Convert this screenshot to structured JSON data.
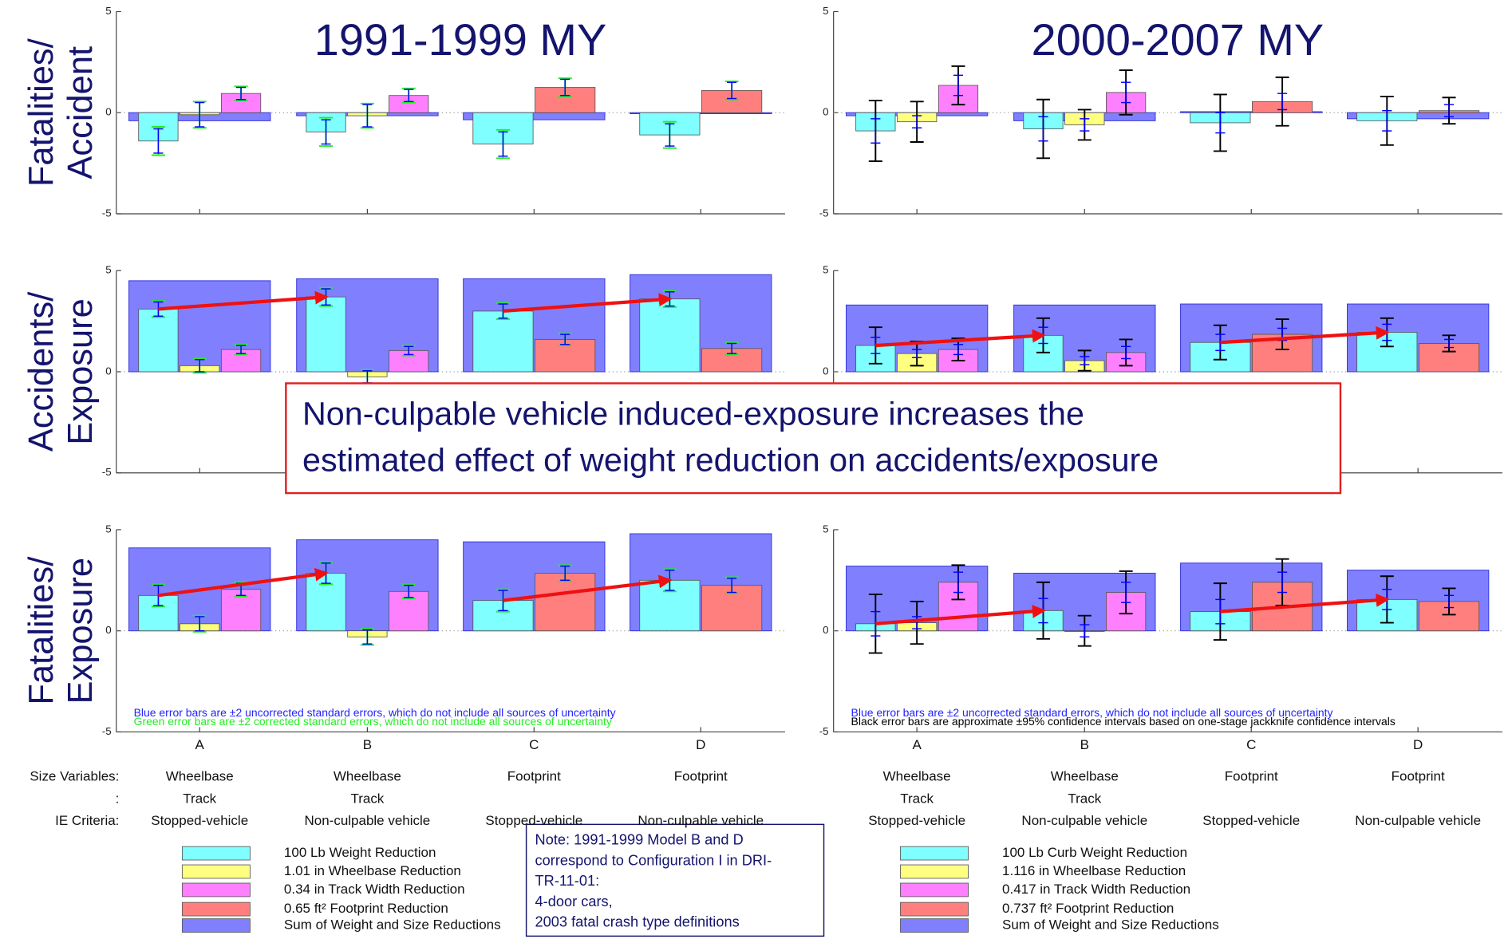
{
  "chart_data": [
    {
      "type": "bar",
      "title": "1991-1999 MY",
      "ylabel": [
        "Fatalities/",
        "Accident"
      ],
      "ylim": [
        -5,
        5
      ],
      "yticks": [
        5,
        0,
        -5
      ],
      "error_color": "#0000ff",
      "error2_color": "#22ee22",
      "series": [
        {
          "color": "#7fffff",
          "values": [
            -1.4,
            -0.95,
            -1.55,
            -1.1
          ],
          "errors": [
            0.6,
            0.6,
            0.6,
            0.55
          ],
          "errors2": [
            0.7,
            0.7,
            0.7,
            0.65
          ]
        },
        {
          "color": "#ffff80",
          "values": [
            -0.1,
            -0.15,
            null,
            null
          ],
          "errors": [
            0.6,
            0.55,
            null,
            null
          ],
          "errors2": [
            0.65,
            0.6,
            null,
            null
          ]
        },
        {
          "color": "#ff80ff",
          "values": [
            0.95,
            0.85,
            null,
            null
          ],
          "errors": [
            0.3,
            0.3,
            null,
            null
          ],
          "errors2": [
            0.35,
            0.35,
            null,
            null
          ]
        },
        {
          "color": "#ff7f7f",
          "values": [
            null,
            null,
            1.25,
            1.1
          ],
          "errors": [
            null,
            null,
            0.4,
            0.4
          ],
          "errors2": [
            null,
            null,
            0.45,
            0.45
          ]
        },
        {
          "color": "#8080ff",
          "background": true,
          "values": [
            -0.4,
            -0.15,
            -0.35,
            -0.05
          ]
        }
      ]
    },
    {
      "type": "bar",
      "ylabel": [
        "Accidents/",
        "Exposure"
      ],
      "arrows": true,
      "ylim": [
        -5,
        5
      ],
      "yticks": [
        5,
        0,
        -5
      ],
      "error_color": "#0000ff",
      "error2_color": "#22ee22",
      "series": [
        {
          "color": "#7fffff",
          "values": [
            3.1,
            3.7,
            3.0,
            3.6
          ],
          "errors": [
            0.35,
            0.4,
            0.35,
            0.35
          ],
          "errors2": [
            0.4,
            0.45,
            0.4,
            0.4
          ]
        },
        {
          "color": "#ffff80",
          "values": [
            0.3,
            -0.25,
            null,
            null
          ],
          "errors": [
            0.3,
            0.3,
            null,
            null
          ],
          "errors2": [
            0.35,
            0.35,
            null,
            null
          ]
        },
        {
          "color": "#ff80ff",
          "values": [
            1.1,
            1.05,
            null,
            null
          ],
          "errors": [
            0.2,
            0.2,
            null,
            null
          ],
          "errors2": [
            0.25,
            0.25,
            null,
            null
          ]
        },
        {
          "color": "#ff7f7f",
          "values": [
            null,
            null,
            1.6,
            1.15
          ],
          "errors": [
            null,
            null,
            0.25,
            0.25
          ],
          "errors2": [
            null,
            null,
            0.3,
            0.3
          ]
        },
        {
          "color": "#8080ff",
          "background": true,
          "values": [
            4.5,
            4.6,
            4.6,
            4.8
          ]
        }
      ]
    },
    {
      "type": "bar",
      "ylabel": [
        "Fatalities/",
        "Exposure"
      ],
      "arrows": true,
      "categories": [
        "A",
        "B",
        "C",
        "D"
      ],
      "ylim": [
        -5,
        5
      ],
      "yticks": [
        5,
        0,
        -5
      ],
      "error_color": "#0000ff",
      "error2_color": "#22ee22",
      "notes": [
        {
          "text": "Blue error bars are ±2 uncorrected standard errors, which do not include all sources of uncertainty",
          "color": "#2222ff"
        },
        {
          "text": "Green error bars are ±2 corrected standard errors, which do not include all sources of uncertainty",
          "color": "#22ee22"
        }
      ],
      "series": [
        {
          "name": "100 Lb Weight Reduction",
          "color": "#7fffff",
          "values": [
            1.75,
            2.85,
            1.5,
            2.5
          ],
          "errors": [
            0.5,
            0.5,
            0.5,
            0.5
          ],
          "errors2": [
            0.55,
            0.55,
            0.55,
            0.55
          ]
        },
        {
          "name": "1.01 in Wheelbase Reduction",
          "color": "#ffff80",
          "values": [
            0.35,
            -0.3,
            null,
            null
          ],
          "errors": [
            0.35,
            0.35,
            null,
            null
          ],
          "errors2": [
            0.4,
            0.4,
            null,
            null
          ]
        },
        {
          "name": "0.34 in Track Width Reduction",
          "color": "#ff80ff",
          "values": [
            2.05,
            1.95,
            null,
            null
          ],
          "errors": [
            0.3,
            0.3,
            null,
            null
          ],
          "errors2": [
            0.35,
            0.35,
            null,
            null
          ]
        },
        {
          "name": "0.65 ft² Footprint Reduction",
          "color": "#ff7f7f",
          "values": [
            null,
            null,
            2.85,
            2.25
          ],
          "errors": [
            null,
            null,
            0.35,
            0.35
          ],
          "errors2": [
            null,
            null,
            0.4,
            0.4
          ]
        },
        {
          "name": "Sum of Weight and Size Reductions",
          "color": "#8080ff",
          "background": true,
          "values": [
            4.1,
            4.5,
            4.4,
            4.8
          ]
        }
      ]
    },
    {
      "type": "bar",
      "title": "2000-2007 MY",
      "ylim": [
        -5,
        5
      ],
      "yticks": [
        5,
        0,
        -5
      ],
      "error_color": "#0000ff",
      "error2_color": "#000000",
      "series": [
        {
          "color": "#7fffff",
          "values": [
            -0.9,
            -0.8,
            -0.5,
            -0.4
          ],
          "errors": [
            0.6,
            0.6,
            0.5,
            0.5
          ],
          "errors2": [
            1.5,
            1.45,
            1.4,
            1.2
          ]
        },
        {
          "color": "#ffff80",
          "values": [
            -0.45,
            -0.6,
            null,
            null
          ],
          "errors": [
            0.3,
            0.3,
            null,
            null
          ],
          "errors2": [
            1.0,
            0.75,
            null,
            null
          ]
        },
        {
          "color": "#ff80ff",
          "values": [
            1.35,
            1.0,
            null,
            null
          ],
          "errors": [
            0.5,
            0.5,
            null,
            null
          ],
          "errors2": [
            0.95,
            1.1,
            null,
            null
          ]
        },
        {
          "color": "#ff7f7f",
          "values": [
            null,
            null,
            0.55,
            0.1
          ],
          "errors": [
            null,
            null,
            0.4,
            0.3
          ],
          "errors2": [
            null,
            null,
            1.2,
            0.65
          ]
        },
        {
          "color": "#8080ff",
          "background": true,
          "values": [
            -0.15,
            -0.4,
            0.05,
            -0.3
          ]
        }
      ]
    },
    {
      "type": "bar",
      "arrows": true,
      "ylim": [
        -5,
        5
      ],
      "yticks": [
        5,
        0,
        -5
      ],
      "error_color": "#0000ff",
      "error2_color": "#000000",
      "series": [
        {
          "color": "#7fffff",
          "values": [
            1.3,
            1.8,
            1.45,
            1.95
          ],
          "errors": [
            0.4,
            0.4,
            0.4,
            0.4
          ],
          "errors2": [
            0.9,
            0.85,
            0.85,
            0.7
          ]
        },
        {
          "color": "#ffff80",
          "values": [
            0.9,
            0.55,
            null,
            null
          ],
          "errors": [
            0.2,
            0.2,
            null,
            null
          ],
          "errors2": [
            0.6,
            0.5,
            null,
            null
          ]
        },
        {
          "color": "#ff80ff",
          "values": [
            1.1,
            0.95,
            null,
            null
          ],
          "errors": [
            0.25,
            0.3,
            null,
            null
          ],
          "errors2": [
            0.55,
            0.65,
            null,
            null
          ]
        },
        {
          "color": "#ff7f7f",
          "values": [
            null,
            null,
            1.85,
            1.4
          ],
          "errors": [
            null,
            null,
            0.3,
            0.2
          ],
          "errors2": [
            null,
            null,
            0.75,
            0.4
          ]
        },
        {
          "color": "#8080ff",
          "background": true,
          "values": [
            3.3,
            3.3,
            3.35,
            3.35
          ]
        }
      ]
    },
    {
      "type": "bar",
      "arrows": true,
      "categories": [
        "A",
        "B",
        "C",
        "D"
      ],
      "ylim": [
        -5,
        5
      ],
      "yticks": [
        5,
        0,
        -5
      ],
      "error_color": "#0000ff",
      "error2_color": "#000000",
      "notes": [
        {
          "text": "Blue error bars are ±2 uncorrected standard errors, which do not include all sources of uncertainty",
          "color": "#2222ff"
        },
        {
          "text": "Black error bars are approximate ±95% confidence intervals based on one-stage jackknife confidence intervals",
          "color": "#000000"
        }
      ],
      "series": [
        {
          "name": "100 Lb Curb Weight Reduction",
          "color": "#7fffff",
          "values": [
            0.35,
            1.0,
            0.95,
            1.55
          ],
          "errors": [
            0.6,
            0.6,
            0.6,
            0.5
          ],
          "errors2": [
            1.45,
            1.4,
            1.4,
            1.15
          ]
        },
        {
          "name": "1.116 in Wheelbase Reduction",
          "color": "#ffff80",
          "values": [
            0.4,
            0.0,
            null,
            null
          ],
          "errors": [
            0.3,
            0.3,
            null,
            null
          ],
          "errors2": [
            1.05,
            0.75,
            null,
            null
          ]
        },
        {
          "name": "0.417 in Track Width Reduction",
          "color": "#ff80ff",
          "values": [
            2.4,
            1.9,
            null,
            null
          ],
          "errors": [
            0.5,
            0.5,
            null,
            null
          ],
          "errors2": [
            0.85,
            1.05,
            null,
            null
          ]
        },
        {
          "name": "0.737 ft² Footprint Reduction",
          "color": "#ff7f7f",
          "values": [
            null,
            null,
            2.4,
            1.45
          ],
          "errors": [
            null,
            null,
            0.5,
            0.3
          ],
          "errors2": [
            null,
            null,
            1.15,
            0.65
          ]
        },
        {
          "name": "Sum of Weight and Size Reductions",
          "color": "#8080ff",
          "background": true,
          "values": [
            3.2,
            2.85,
            3.35,
            3.0
          ]
        }
      ]
    }
  ],
  "callout": {
    "lines": [
      "Non-culpable vehicle induced-exposure increases the",
      "estimated effect of weight reduction on accidents/exposure"
    ]
  },
  "size_table": {
    "row_labels": [
      "Size Variables:",
      ":",
      "IE Criteria:"
    ],
    "left": [
      {
        "size": [
          "Wheelbase",
          "Track"
        ],
        "ie": "Stopped-vehicle"
      },
      {
        "size": [
          "Wheelbase",
          "Track"
        ],
        "ie": "Non-culpable vehicle"
      },
      {
        "size": [
          "Footprint"
        ],
        "ie": "Stopped-vehicle"
      },
      {
        "size": [
          "Footprint"
        ],
        "ie": "Non-culpable vehicle"
      }
    ],
    "right": [
      {
        "size": [
          "Wheelbase",
          "Track"
        ],
        "ie": "Stopped-vehicle"
      },
      {
        "size": [
          "Wheelbase",
          "Track"
        ],
        "ie": "Non-culpable vehicle"
      },
      {
        "size": [
          "Footprint"
        ],
        "ie": "Stopped-vehicle"
      },
      {
        "size": [
          "Footprint"
        ],
        "ie": "Non-culpable vehicle"
      }
    ]
  },
  "note": {
    "lines": [
      "Note: 1991-1999 Model B and D",
      "correspond to Configuration I in DRI-",
      "TR-11-01:",
      "4-door cars,",
      "2003 fatal crash type definitions"
    ]
  }
}
